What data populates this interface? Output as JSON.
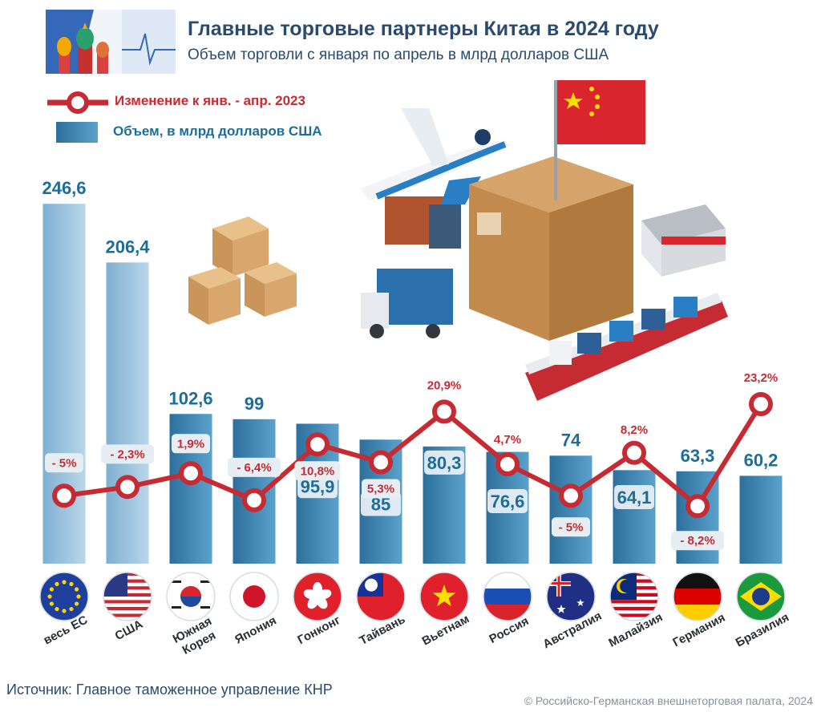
{
  "header": {
    "title": "Главные торговые партнеры Китая в 2024 году",
    "subtitle": "Объем торговли с января по апрель в млрд долларов США"
  },
  "legend": {
    "line_label": "Изменение к янв. - апр. 2023",
    "bar_label": "Объем, в млрд долларов США"
  },
  "colors": {
    "bar": "#3a82b3",
    "line": "#c62a32",
    "value_text": "#1d6d98",
    "change_text": "#c62a32"
  },
  "chart_data": {
    "type": "bar",
    "categories": [
      "весь ЕС",
      "США",
      "Южная Корея",
      "Япония",
      "Гонконг",
      "Тайвань",
      "Вьетнам",
      "Россия",
      "Австралия",
      "Малайзия",
      "Германия",
      "Бразилия"
    ],
    "category_lines": [
      [
        "весь ЕС"
      ],
      [
        "США"
      ],
      [
        "Южная",
        "Корея"
      ],
      [
        "Япония"
      ],
      [
        "Гонконг"
      ],
      [
        "Тайвань"
      ],
      [
        "Вьетнам"
      ],
      [
        "Россия"
      ],
      [
        "Австралия"
      ],
      [
        "Малайзия"
      ],
      [
        "Германия"
      ],
      [
        "Бразилия"
      ]
    ],
    "series": [
      {
        "name": "Объем, в млрд долларов США",
        "type": "bar",
        "values": [
          246.6,
          206.4,
          102.6,
          99,
          95.9,
          85,
          80.3,
          76.6,
          74,
          64.1,
          63.3,
          60.2
        ],
        "labels": [
          "246,6",
          "206,4",
          "102,6",
          "99",
          "95,9",
          "85",
          "80,3",
          "76,6",
          "74",
          "64,1",
          "63,3",
          "60,2"
        ]
      },
      {
        "name": "Изменение к янв. - апр. 2023",
        "type": "line",
        "values": [
          -5,
          -2.3,
          1.9,
          -6.4,
          10.8,
          5.3,
          20.9,
          4.7,
          -5,
          8.2,
          -8.2,
          23.2
        ],
        "labels": [
          "- 5%",
          "- 2,3%",
          "1,9%",
          "- 6,4%",
          "10,8%",
          "5,3%",
          "20,9%",
          "4,7%",
          "- 5%",
          "8,2%",
          "- 8,2%",
          "23,2%"
        ]
      }
    ],
    "flags": [
      "eu-flag-icon",
      "usa-flag-icon",
      "south-korea-flag-icon",
      "japan-flag-icon",
      "hong-kong-flag-icon",
      "taiwan-flag-icon",
      "vietnam-flag-icon",
      "russia-flag-icon",
      "australia-flag-icon",
      "malaysia-flag-icon",
      "germany-flag-icon",
      "brazil-flag-icon"
    ]
  },
  "footer": {
    "source": "Источник: Главное таможенное управление КНР",
    "copyright": "© Российско-Германская внешнеторговая палата, 2024"
  }
}
